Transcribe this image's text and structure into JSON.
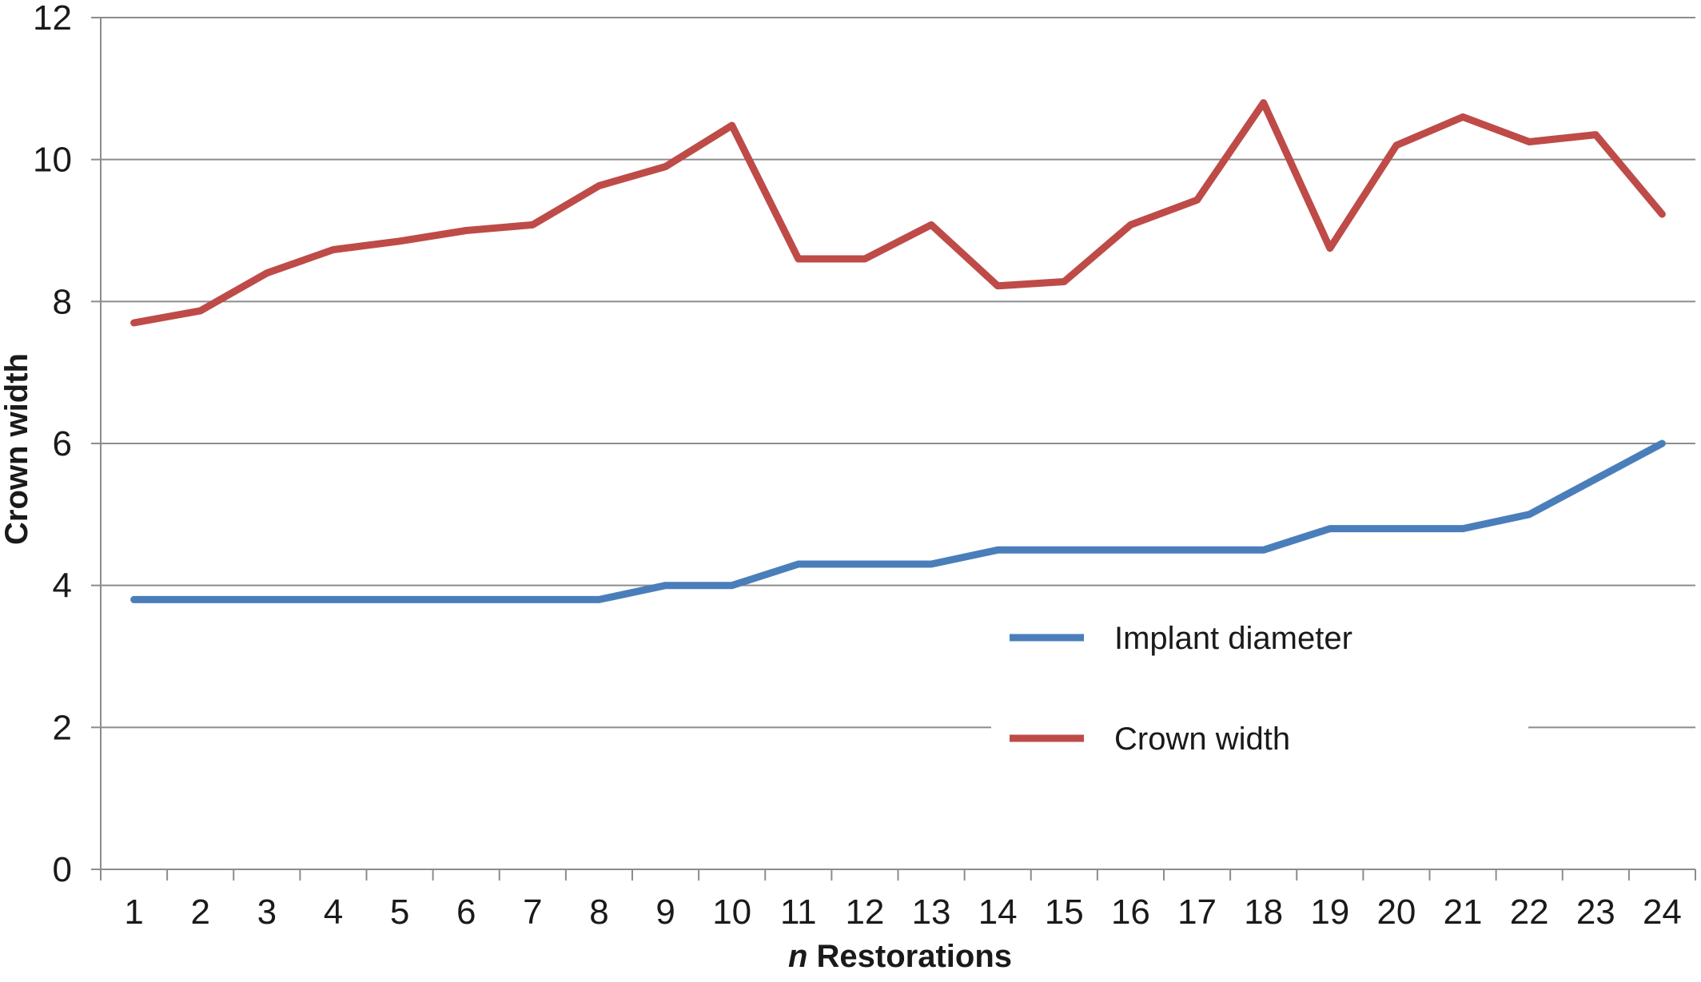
{
  "chart_data": {
    "type": "line",
    "title": "",
    "xlabel_italic_part": "n",
    "xlabel_rest": " Restorations",
    "ylabel": "Crown width",
    "x": [
      1,
      2,
      3,
      4,
      5,
      6,
      7,
      8,
      9,
      10,
      11,
      12,
      13,
      14,
      15,
      16,
      17,
      18,
      19,
      20,
      21,
      22,
      23,
      24
    ],
    "ylim": [
      0,
      12
    ],
    "yticks": [
      0,
      2,
      4,
      6,
      8,
      10,
      12
    ],
    "grid": true,
    "legend_position": "lower-right",
    "series": [
      {
        "name": "Implant diameter",
        "color": "#4a7ebb",
        "values": [
          3.8,
          3.8,
          3.8,
          3.8,
          3.8,
          3.8,
          3.8,
          3.8,
          4.0,
          4.0,
          4.3,
          4.3,
          4.3,
          4.5,
          4.5,
          4.5,
          4.5,
          4.5,
          4.8,
          4.8,
          4.8,
          5.0,
          5.5,
          6.0
        ]
      },
      {
        "name": "Crown width",
        "color": "#be4b48",
        "values": [
          7.7,
          7.87,
          8.4,
          8.73,
          8.85,
          9.0,
          9.08,
          9.63,
          9.9,
          10.48,
          8.6,
          8.6,
          9.08,
          8.22,
          8.28,
          9.08,
          9.43,
          10.8,
          8.75,
          10.2,
          10.6,
          10.25,
          10.35,
          9.23
        ]
      }
    ]
  }
}
